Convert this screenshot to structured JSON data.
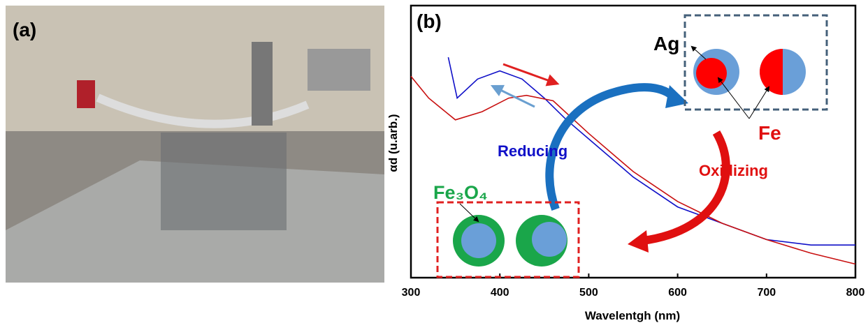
{
  "figure": {
    "panel_a_label": "(a)",
    "panel_b_label": "(b)"
  },
  "chart_data": {
    "type": "line",
    "x_label": "Wavelentgh (nm)",
    "y_label": "αd (u.arb.)",
    "xlim": [
      300,
      800
    ],
    "xticks": [
      300,
      400,
      500,
      600,
      700,
      800
    ],
    "ylim": [
      0,
      100
    ],
    "annotations": [
      "Ag",
      "Fe",
      "Reducing",
      "Oxidizing",
      "Fe₃O₄"
    ],
    "series": [
      {
        "color": "#1010c8",
        "x": [
          342,
          352,
          375,
          400,
          425,
          450,
          475,
          500,
          550,
          600,
          650,
          700,
          750,
          800
        ],
        "values": [
          81,
          66,
          73,
          76,
          73,
          66,
          58,
          51,
          37,
          26,
          20,
          14,
          12,
          12
        ]
      },
      {
        "color": "#c81010",
        "x": [
          300,
          320,
          350,
          380,
          410,
          430,
          460,
          500,
          550,
          600,
          650,
          700,
          750,
          800
        ],
        "values": [
          74,
          66,
          58,
          61,
          66,
          67,
          65,
          53,
          39,
          28,
          20,
          14,
          9,
          5
        ]
      }
    ]
  }
}
